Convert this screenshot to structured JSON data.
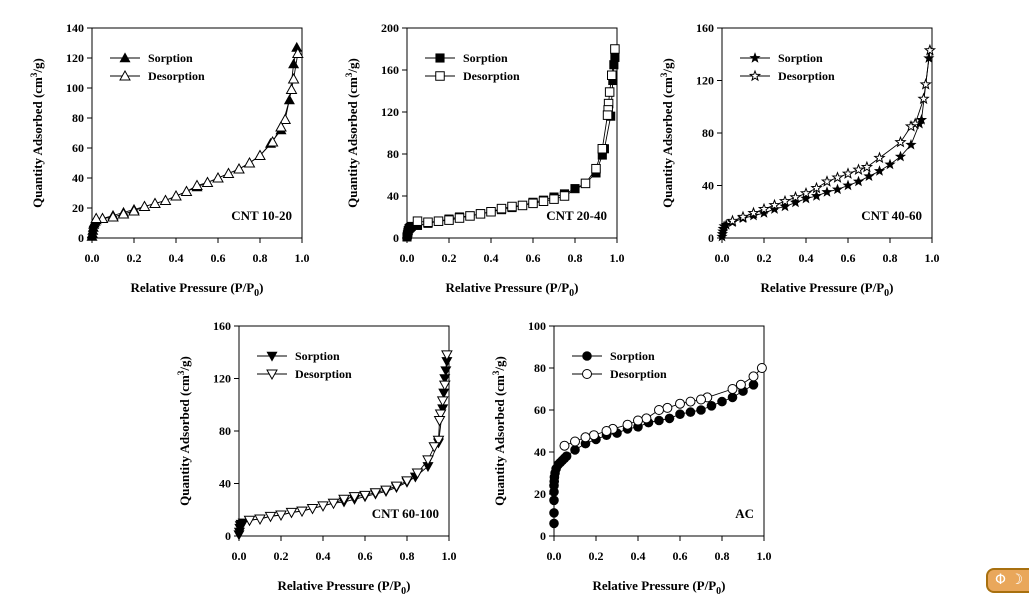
{
  "chart_data": [
    {
      "type": "scatter",
      "title": "",
      "annotation": "CNT 10-20",
      "xlabel": "Relative Pressure (P/P0)",
      "ylabel": "Quantity Adsorbed (cm3/g)",
      "xlim": [
        0,
        1.0
      ],
      "ylim": [
        0,
        140
      ],
      "xticks": [
        "0.0",
        "0.2",
        "0.4",
        "0.6",
        "0.8",
        "1.0"
      ],
      "yticks": [
        "0",
        "20",
        "40",
        "60",
        "80",
        "100",
        "120",
        "140"
      ],
      "grid": false,
      "legend": "top-left",
      "series": [
        {
          "name": "Sorption",
          "marker": "triangle-up-filled",
          "x": [
            0.0,
            0.002,
            0.004,
            0.006,
            0.008,
            0.01,
            0.015,
            0.02,
            0.05,
            0.1,
            0.15,
            0.2,
            0.25,
            0.3,
            0.35,
            0.4,
            0.45,
            0.5,
            0.55,
            0.6,
            0.65,
            0.7,
            0.75,
            0.8,
            0.85,
            0.9,
            0.94,
            0.96,
            0.975
          ],
          "y": [
            1,
            3,
            5,
            7,
            9,
            10,
            11,
            12,
            13,
            15,
            17,
            19,
            21,
            23,
            25,
            28,
            31,
            34,
            37,
            40,
            43,
            46,
            50,
            55,
            63,
            72,
            92,
            116,
            127
          ]
        },
        {
          "name": "Desorption",
          "marker": "triangle-up-open",
          "x": [
            0.98,
            0.96,
            0.95,
            0.92,
            0.9,
            0.86,
            0.8,
            0.75,
            0.7,
            0.65,
            0.6,
            0.55,
            0.5,
            0.45,
            0.4,
            0.35,
            0.3,
            0.25,
            0.2,
            0.15,
            0.1,
            0.05,
            0.02
          ],
          "y": [
            123,
            106,
            99,
            79,
            74,
            64,
            55,
            50,
            46,
            43,
            40,
            37,
            35,
            31,
            28,
            25,
            23,
            21,
            18,
            16,
            14,
            13,
            13
          ]
        }
      ]
    },
    {
      "type": "scatter",
      "title": "",
      "annotation": "CNT 20-40",
      "xlabel": "Relative Pressure (P/P0)",
      "ylabel": "Quantity Adsorbed (cm3/g)",
      "xlim": [
        0,
        1.0
      ],
      "ylim": [
        0,
        200
      ],
      "xticks": [
        "0.0",
        "0.2",
        "0.4",
        "0.6",
        "0.8",
        "1.0"
      ],
      "yticks": [
        "0",
        "40",
        "80",
        "120",
        "160",
        "200"
      ],
      "grid": false,
      "legend": "top-left",
      "series": [
        {
          "name": "Sorption",
          "marker": "square-filled",
          "x": [
            0.0,
            0.002,
            0.004,
            0.006,
            0.01,
            0.015,
            0.02,
            0.05,
            0.1,
            0.15,
            0.2,
            0.25,
            0.3,
            0.35,
            0.4,
            0.45,
            0.5,
            0.55,
            0.6,
            0.65,
            0.7,
            0.75,
            0.8,
            0.85,
            0.9,
            0.93,
            0.94,
            0.97,
            0.98,
            0.985,
            0.99
          ],
          "y": [
            1,
            3,
            5,
            7,
            9,
            10,
            11,
            12,
            14,
            16,
            18,
            20,
            21,
            23,
            25,
            27,
            29,
            31,
            34,
            36,
            39,
            42,
            47,
            52,
            62,
            79,
            85,
            116,
            150,
            165,
            172
          ]
        },
        {
          "name": "Desorption",
          "marker": "square-open",
          "x": [
            0.99,
            0.975,
            0.965,
            0.96,
            0.958,
            0.955,
            0.93,
            0.9,
            0.85,
            0.75,
            0.7,
            0.65,
            0.6,
            0.55,
            0.5,
            0.45,
            0.4,
            0.35,
            0.3,
            0.25,
            0.2,
            0.15,
            0.1,
            0.05
          ],
          "y": [
            180,
            155,
            139,
            128,
            122,
            117,
            85,
            66,
            52,
            40,
            37,
            35,
            33,
            31,
            30,
            28,
            25,
            23,
            21,
            19,
            17,
            16,
            15,
            16
          ]
        }
      ]
    },
    {
      "type": "scatter",
      "title": "",
      "annotation": "CNT 40-60",
      "xlabel": "Relative Pressure (P/P0)",
      "ylabel": "Quantity Adsorbed (cm3/g)",
      "xlim": [
        0,
        1.0
      ],
      "ylim": [
        0,
        160
      ],
      "xticks": [
        "0.0",
        "0.2",
        "0.4",
        "0.6",
        "0.8",
        "1.0"
      ],
      "yticks": [
        "0",
        "40",
        "80",
        "120",
        "160"
      ],
      "grid": false,
      "legend": "top-left",
      "series": [
        {
          "name": "Sorption",
          "marker": "star-filled",
          "x": [
            0.0,
            0.002,
            0.004,
            0.006,
            0.01,
            0.02,
            0.05,
            0.1,
            0.15,
            0.2,
            0.25,
            0.3,
            0.35,
            0.4,
            0.45,
            0.5,
            0.55,
            0.6,
            0.65,
            0.7,
            0.75,
            0.8,
            0.85,
            0.9,
            0.94,
            0.95,
            0.985
          ],
          "y": [
            1,
            3,
            5,
            7,
            9,
            10,
            12,
            15,
            17,
            19,
            22,
            24,
            27,
            30,
            32,
            35,
            37,
            40,
            43,
            47,
            51,
            56,
            62,
            71,
            87,
            90,
            137
          ]
        },
        {
          "name": "Desorption",
          "marker": "star-open",
          "x": [
            0.99,
            0.97,
            0.96,
            0.92,
            0.9,
            0.85,
            0.75,
            0.69,
            0.65,
            0.6,
            0.55,
            0.5,
            0.45,
            0.4,
            0.35,
            0.3,
            0.25,
            0.2,
            0.15,
            0.1,
            0.05
          ],
          "y": [
            143,
            117,
            106,
            87,
            85,
            73,
            61,
            54,
            52,
            49,
            46,
            43,
            38,
            34,
            31,
            28,
            25,
            22,
            19,
            16,
            13
          ]
        }
      ]
    },
    {
      "type": "scatter",
      "title": "",
      "annotation": "CNT 60-100",
      "xlabel": "Relative Pressure (P/P0)",
      "ylabel": "Quantity Adsorbed (cm3/g)",
      "xlim": [
        0,
        1.0
      ],
      "ylim": [
        0,
        160
      ],
      "xticks": [
        "0.0",
        "0.2",
        "0.4",
        "0.6",
        "0.8",
        "1.0"
      ],
      "yticks": [
        "0",
        "40",
        "80",
        "120",
        "160"
      ],
      "grid": false,
      "legend": "top-left",
      "series": [
        {
          "name": "Sorption",
          "marker": "triangle-down-filled",
          "x": [
            0.0,
            0.002,
            0.004,
            0.006,
            0.01,
            0.02,
            0.05,
            0.1,
            0.15,
            0.2,
            0.25,
            0.3,
            0.35,
            0.4,
            0.45,
            0.5,
            0.55,
            0.6,
            0.65,
            0.7,
            0.75,
            0.8,
            0.84,
            0.9,
            0.95,
            0.97,
            0.975,
            0.98,
            0.985,
            0.99
          ],
          "y": [
            1,
            3,
            6,
            8,
            9,
            10,
            12,
            13,
            15,
            16,
            18,
            19,
            21,
            23,
            25,
            26,
            28,
            30,
            32,
            34,
            37,
            41,
            45,
            53,
            71,
            97,
            109,
            120,
            126,
            133
          ]
        },
        {
          "name": "Desorption",
          "marker": "triangle-down-open",
          "x": [
            0.99,
            0.98,
            0.97,
            0.96,
            0.955,
            0.95,
            0.93,
            0.9,
            0.85,
            0.8,
            0.75,
            0.7,
            0.65,
            0.6,
            0.55,
            0.5,
            0.45,
            0.4,
            0.35,
            0.3,
            0.25,
            0.2,
            0.15,
            0.1,
            0.05
          ],
          "y": [
            138,
            115,
            103,
            93,
            88,
            73,
            68,
            58,
            48,
            42,
            38,
            35,
            33,
            31,
            30,
            28,
            25,
            23,
            21,
            19,
            18,
            16,
            15,
            13,
            12
          ]
        }
      ]
    },
    {
      "type": "scatter",
      "title": "",
      "annotation": "AC",
      "xlabel": "Relative Pressure (P/P0)",
      "ylabel": "Quantity Adsorbed (cm3/g)",
      "xlim": [
        0,
        1.0
      ],
      "ylim": [
        0,
        100
      ],
      "xticks": [
        "0.0",
        "0.2",
        "0.4",
        "0.6",
        "0.8",
        "1.0"
      ],
      "yticks": [
        "0",
        "20",
        "40",
        "60",
        "80",
        "100"
      ],
      "grid": false,
      "legend": "top-left",
      "series": [
        {
          "name": "Sorption",
          "marker": "circle-filled",
          "x": [
            0.0,
            0.0,
            0.0,
            0.0,
            0.0,
            0.001,
            0.002,
            0.005,
            0.01,
            0.02,
            0.03,
            0.04,
            0.05,
            0.06,
            0.1,
            0.15,
            0.2,
            0.25,
            0.3,
            0.35,
            0.4,
            0.45,
            0.5,
            0.55,
            0.6,
            0.65,
            0.7,
            0.75,
            0.8,
            0.85,
            0.9,
            0.95
          ],
          "y": [
            6,
            11,
            17,
            21,
            24,
            26,
            28,
            30,
            32,
            34,
            35,
            36,
            37,
            38,
            41,
            44,
            46,
            48,
            49,
            51,
            52,
            54,
            55,
            56,
            58,
            59,
            60,
            62,
            64,
            66,
            69,
            72
          ]
        },
        {
          "name": "Desorption",
          "marker": "circle-open",
          "x": [
            0.99,
            0.95,
            0.89,
            0.85,
            0.73,
            0.7,
            0.65,
            0.6,
            0.54,
            0.5,
            0.44,
            0.4,
            0.35,
            0.28,
            0.25,
            0.19,
            0.15,
            0.1,
            0.05
          ],
          "y": [
            80,
            76,
            72,
            70,
            66,
            65,
            64,
            63,
            61,
            60,
            56,
            55,
            53,
            51,
            50,
            48,
            47,
            45,
            43
          ]
        }
      ]
    }
  ],
  "ui": {
    "toggle_label": "Φ ☽"
  }
}
